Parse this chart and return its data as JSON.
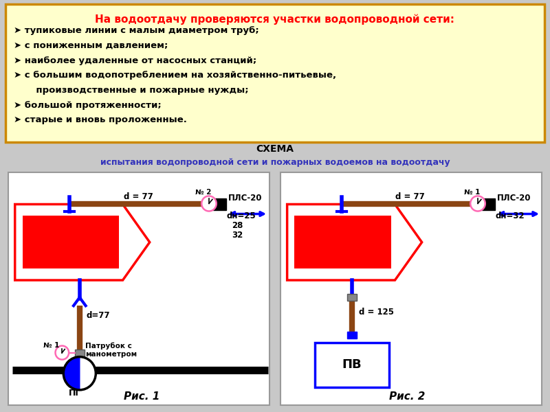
{
  "title_top": "На водоотдачу проверяются участки водопроводной сети:",
  "bullet_points": [
    "тупиковые линии с малым диаметром труб;",
    "с пониженным давлением;",
    "наиболее удаленные от насосных станций;",
    "с большим водопотреблением на хозяйственно-питьевые,",
    "   производственные и пожарные нужды;",
    "большой протяженности;",
    "старые и вновь проложенные."
  ],
  "schema_title1": "СХЕМА",
  "schema_title2": "испытания водопроводной сети и пожарных водоемов на водоотдачу",
  "top_box_bg": "#ffffcc",
  "top_box_border": "#cc8800",
  "fig1_label": "Рис. 1",
  "fig2_label": "Рис. 2",
  "red_color": "#ff0000",
  "blue_color": "#0000ff",
  "brown_color": "#8B4513",
  "black_color": "#000000",
  "pink_color": "#ff69b4",
  "gray_bg": "#c8c8c8"
}
